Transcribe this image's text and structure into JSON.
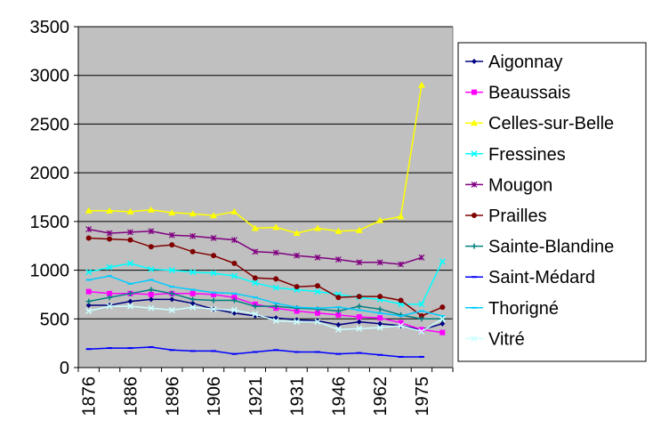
{
  "chart_data": {
    "type": "line",
    "title": "",
    "xlabel": "",
    "ylabel": "",
    "ylim": [
      0,
      3500
    ],
    "yticks": [
      "0",
      "500",
      "1000",
      "1500",
      "2000",
      "2500",
      "3000",
      "3500"
    ],
    "x": [
      "1876",
      "1881",
      "1886",
      "1891",
      "1896",
      "1901",
      "1906",
      "1911",
      "1921",
      "1926",
      "1931",
      "1936",
      "1946",
      "1954",
      "1962",
      "1968",
      "1975",
      "1982"
    ],
    "xtick_labels": [
      "1876",
      "1886",
      "1896",
      "1906",
      "1921",
      "1931",
      "1946",
      "1962",
      "1975"
    ],
    "grid": true,
    "plot_background": "#c0c0c0",
    "legend_position": "right",
    "series": [
      {
        "name": "Aigonnay",
        "color": "#000080",
        "marker": "diamond",
        "values": [
          640,
          640,
          680,
          700,
          700,
          660,
          600,
          560,
          530,
          510,
          490,
          480,
          440,
          470,
          450,
          430,
          390,
          450
        ]
      },
      {
        "name": "Beaussais",
        "color": "#ff00ff",
        "marker": "square",
        "values": [
          780,
          760,
          760,
          750,
          760,
          760,
          750,
          720,
          650,
          610,
          580,
          560,
          540,
          520,
          510,
          460,
          390,
          360
        ]
      },
      {
        "name": "Celles-sur-Belle",
        "color": "#ffff00",
        "marker": "triangle",
        "values": [
          1610,
          1610,
          1600,
          1620,
          1590,
          1580,
          1560,
          1600,
          1430,
          1440,
          1380,
          1430,
          1400,
          1410,
          1510,
          1550,
          2900,
          null
        ]
      },
      {
        "name": "Fressines",
        "color": "#00ffff",
        "marker": "x",
        "values": [
          980,
          1030,
          1070,
          1010,
          1000,
          980,
          970,
          940,
          870,
          820,
          800,
          780,
          750,
          720,
          700,
          650,
          650,
          1090
        ]
      },
      {
        "name": "Mougon",
        "color": "#800080",
        "marker": "star",
        "values": [
          1420,
          1380,
          1390,
          1400,
          1360,
          1350,
          1330,
          1310,
          1190,
          1180,
          1150,
          1130,
          1110,
          1080,
          1080,
          1060,
          1130,
          null
        ]
      },
      {
        "name": "Prailles",
        "color": "#800000",
        "marker": "circle",
        "values": [
          1330,
          1320,
          1310,
          1240,
          1260,
          1190,
          1150,
          1070,
          920,
          910,
          830,
          840,
          720,
          730,
          730,
          690,
          530,
          620
        ]
      },
      {
        "name": "Sainte-Blandine",
        "color": "#008080",
        "marker": "plus",
        "values": [
          680,
          720,
          760,
          800,
          760,
          700,
          690,
          690,
          630,
          630,
          610,
          600,
          580,
          630,
          600,
          540,
          500,
          500
        ]
      },
      {
        "name": "Saint-Médard",
        "color": "#0000ff",
        "marker": "dash",
        "values": [
          190,
          200,
          200,
          210,
          180,
          170,
          170,
          140,
          160,
          180,
          160,
          160,
          140,
          150,
          130,
          110,
          110,
          null
        ]
      },
      {
        "name": "Thorigné",
        "color": "#00ccff",
        "marker": "dash",
        "values": [
          900,
          940,
          860,
          900,
          830,
          800,
          770,
          760,
          720,
          660,
          620,
          610,
          620,
          590,
          560,
          530,
          580,
          530
        ]
      },
      {
        "name": "Vitré",
        "color": "#ccffff",
        "marker": "x",
        "values": [
          580,
          630,
          630,
          610,
          590,
          620,
          600,
          590,
          550,
          480,
          470,
          470,
          390,
          400,
          410,
          430,
          370,
          500
        ]
      }
    ]
  }
}
